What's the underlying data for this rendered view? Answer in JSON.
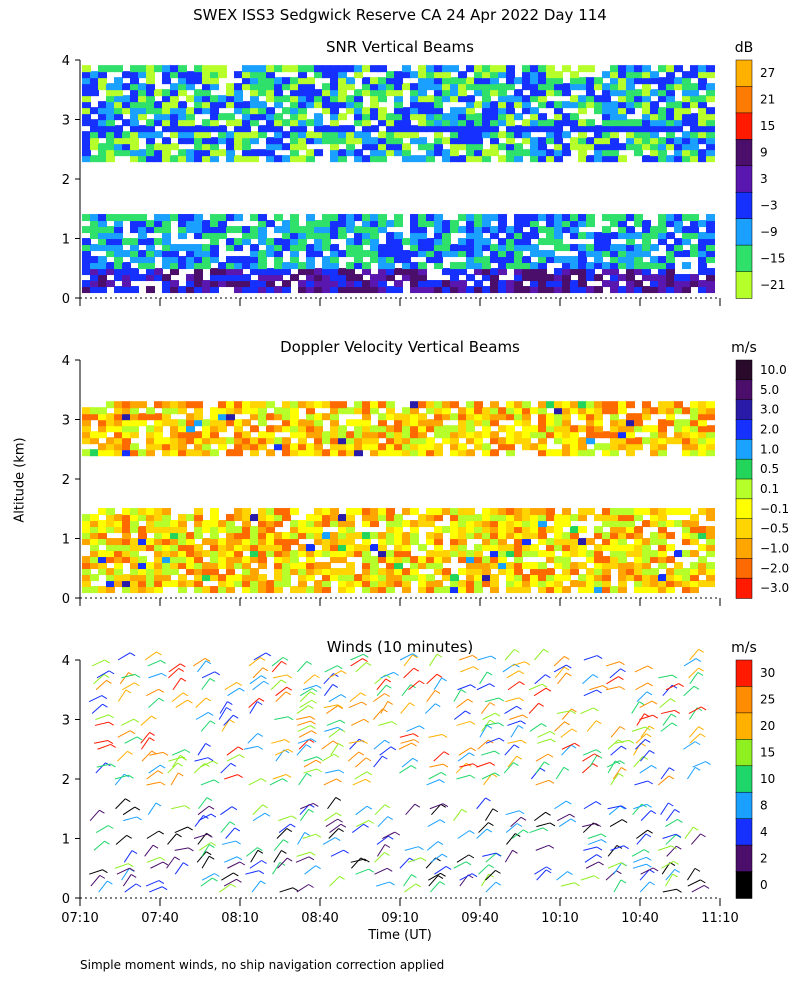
{
  "title": "SWEX ISS3 Sedgwick Reserve CA  24 Apr 2022 Day 114",
  "footnote": "Simple moment winds, no ship navigation correction applied",
  "y_axis_label": "Altitude (km)",
  "x_axis_label": "Time (UT)",
  "x_ticks": [
    "07:10",
    "07:40",
    "08:10",
    "08:40",
    "09:10",
    "09:40",
    "10:10",
    "10:40",
    "11:10"
  ],
  "y_ticks": [
    "0",
    "1",
    "2",
    "3",
    "4"
  ],
  "chart_data": [
    {
      "type": "heatmap",
      "title": "SNR Vertical Beams",
      "unit": "dB",
      "x_range": [
        "07:10",
        "11:10"
      ],
      "y_range_km": [
        0,
        4
      ],
      "colorbar": {
        "labels": [
          "27",
          "21",
          "15",
          "9",
          "3",
          "−3",
          "−9",
          "−15",
          "−21"
        ],
        "colors": [
          "#ffb000",
          "#ff7a00",
          "#ff1a00",
          "#4b0f6b",
          "#5a17b0",
          "#1530ff",
          "#1aa0ff",
          "#2fe06a",
          "#b6ff2a"
        ]
      },
      "bands": [
        {
          "from_km": 0.1,
          "to_km": 1.4,
          "dominant_db": "-3 to 9"
        },
        {
          "from_km": 2.3,
          "to_km": 3.9,
          "dominant_db": "-15 to -3"
        }
      ]
    },
    {
      "type": "heatmap",
      "title": "Doppler Velocity Vertical Beams",
      "unit": "m/s",
      "x_range": [
        "07:10",
        "11:10"
      ],
      "y_range_km": [
        0,
        4
      ],
      "colorbar": {
        "labels": [
          "10.0",
          "5.0",
          "3.0",
          "2.0",
          "1.0",
          "0.5",
          "0.1",
          "−0.1",
          "−0.5",
          "−1.0",
          "−2.0",
          "−3.0"
        ],
        "colors": [
          "#2a0a2a",
          "#4b0f6b",
          "#2a1aa8",
          "#1530ff",
          "#19a3ff",
          "#23d45a",
          "#b6ff2a",
          "#ffff00",
          "#ffd400",
          "#ffa500",
          "#ff6a00",
          "#ff1a00"
        ]
      },
      "bands": [
        {
          "from_km": 0.1,
          "to_km": 1.5,
          "dominant_ms": "-0.5 to -0.1"
        },
        {
          "from_km": 2.4,
          "to_km": 3.3,
          "dominant_ms": "-1.0 to -0.1"
        }
      ]
    },
    {
      "type": "scatter",
      "title": "Winds (10 minutes)",
      "unit": "m/s",
      "x_range": [
        "07:10",
        "11:10"
      ],
      "y_range_km": [
        0,
        4
      ],
      "colorbar": {
        "labels": [
          "30",
          "25",
          "20",
          "15",
          "10",
          "8",
          "4",
          "2",
          "0"
        ],
        "colors": [
          "#ff1a00",
          "#ff8c00",
          "#ffb000",
          "#8ef020",
          "#1ed66a",
          "#1aa0ff",
          "#1530ff",
          "#4b0f6b",
          "#000000"
        ]
      },
      "layers": [
        {
          "from_km": 0.1,
          "to_km": 1.6,
          "speed_ms": "0 to 15"
        },
        {
          "from_km": 1.9,
          "to_km": 4.1,
          "speed_ms": "4 to 30"
        }
      ]
    }
  ]
}
